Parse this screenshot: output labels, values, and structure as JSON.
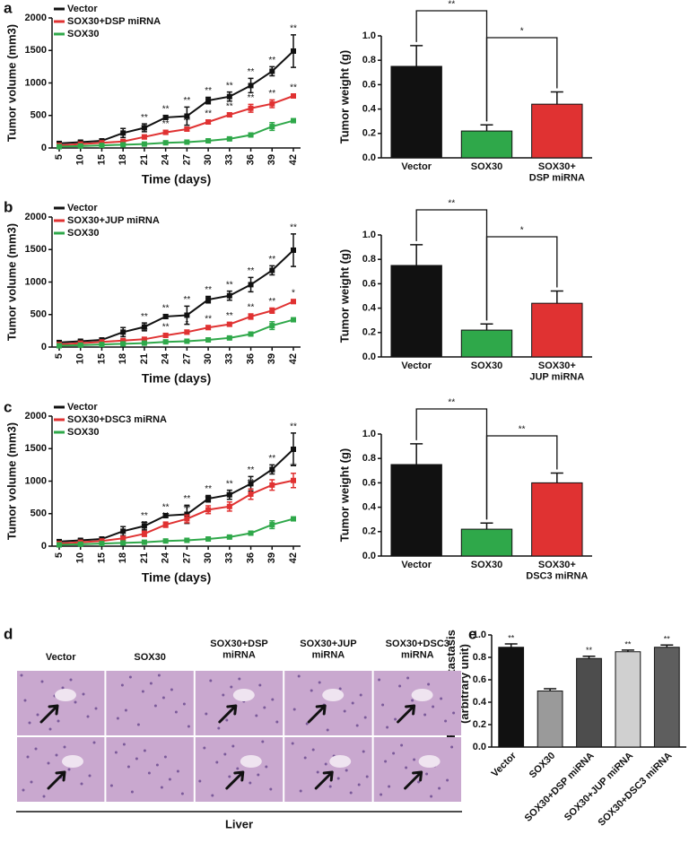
{
  "panel_labels": [
    "a",
    "b",
    "c",
    "d",
    "e"
  ],
  "chart_data": [
    {
      "type": "line",
      "xlabel": "Time (days)",
      "ylabel": "Tumor volume (mm3)",
      "categories": [
        "5",
        "10",
        "15",
        "18",
        "21",
        "24",
        "27",
        "30",
        "33",
        "36",
        "39",
        "42"
      ],
      "ylim": [
        0,
        2000
      ],
      "yticks": [
        0,
        500,
        1000,
        1500,
        2000
      ],
      "series": [
        {
          "name": "Vector",
          "color": "#111111",
          "values": [
            70,
            90,
            110,
            230,
            310,
            470,
            490,
            730,
            790,
            960,
            1180,
            1490
          ],
          "errors": [
            20,
            20,
            20,
            70,
            60,
            30,
            140,
            50,
            70,
            110,
            70,
            250
          ],
          "value_annotations": [
            null,
            null,
            null,
            null,
            "**",
            "**",
            "**",
            "**",
            "**",
            "**",
            "**",
            "**"
          ]
        },
        {
          "name": "SOX30+DSP miRNA",
          "color": "#e03232",
          "values": [
            40,
            60,
            80,
            100,
            170,
            240,
            290,
            400,
            510,
            610,
            680,
            800
          ],
          "errors": [
            10,
            10,
            10,
            20,
            30,
            30,
            30,
            30,
            30,
            60,
            60,
            30
          ],
          "value_annotations": [
            null,
            null,
            null,
            null,
            "**",
            "**",
            "**",
            "**",
            "**",
            "**",
            "**",
            "**"
          ]
        },
        {
          "name": "SOX30",
          "color": "#2fa84a",
          "values": [
            20,
            30,
            40,
            50,
            60,
            80,
            90,
            110,
            140,
            200,
            330,
            420
          ],
          "errors": [
            10,
            10,
            10,
            10,
            10,
            10,
            10,
            15,
            15,
            20,
            60,
            20
          ],
          "value_annotations": [
            null,
            null,
            null,
            null,
            null,
            null,
            null,
            null,
            null,
            null,
            null,
            null
          ]
        }
      ]
    },
    {
      "type": "bar",
      "ylabel": "Tumor weight (g)",
      "categories": [
        "Vector",
        "SOX30",
        "SOX30+\nDSP miRNA"
      ],
      "values": [
        0.75,
        0.22,
        0.44
      ],
      "errors": [
        0.17,
        0.05,
        0.1
      ],
      "colors": [
        "#111111",
        "#2fa84a",
        "#e03232"
      ],
      "ylim": [
        0,
        1.0
      ],
      "yticks": [
        {
          "value": 0,
          "label": "0.0"
        },
        {
          "value": 0.2,
          "label": "0.2"
        },
        {
          "value": 0.4,
          "label": "0.4"
        },
        {
          "value": 0.6,
          "label": "0.6"
        },
        {
          "value": 0.8,
          "label": "0.8"
        },
        {
          "value": 1.0,
          "label": "1.0"
        }
      ],
      "comparisons": [
        {
          "pair": [
            0,
            1
          ],
          "label": "**"
        },
        {
          "pair": [
            1,
            2
          ],
          "label": "*"
        }
      ]
    },
    {
      "type": "line",
      "xlabel": "Time (days)",
      "ylabel": "Tumor volume (mm3)",
      "categories": [
        "5",
        "10",
        "15",
        "18",
        "21",
        "24",
        "27",
        "30",
        "33",
        "36",
        "39",
        "42"
      ],
      "ylim": [
        0,
        2000
      ],
      "yticks": [
        0,
        500,
        1000,
        1500,
        2000
      ],
      "series": [
        {
          "name": "Vector",
          "color": "#111111",
          "values": [
            70,
            90,
            110,
            230,
            310,
            470,
            490,
            730,
            790,
            960,
            1180,
            1490
          ],
          "errors": [
            20,
            20,
            20,
            70,
            60,
            30,
            140,
            50,
            70,
            110,
            70,
            250
          ],
          "value_annotations": [
            null,
            null,
            null,
            null,
            "**",
            "**",
            "**",
            "**",
            "**",
            "**",
            "**",
            "**"
          ]
        },
        {
          "name": "SOX30+JUP miRNA",
          "color": "#e03232",
          "values": [
            40,
            60,
            80,
            100,
            120,
            180,
            230,
            300,
            350,
            470,
            560,
            700
          ],
          "errors": [
            10,
            10,
            10,
            20,
            20,
            30,
            30,
            30,
            30,
            40,
            40,
            30
          ],
          "value_annotations": [
            null,
            null,
            null,
            null,
            "**",
            "**",
            "*",
            "**",
            "**",
            "**",
            "**",
            "*"
          ]
        },
        {
          "name": "SOX30",
          "color": "#2fa84a",
          "values": [
            20,
            30,
            40,
            50,
            60,
            80,
            90,
            110,
            140,
            200,
            330,
            420
          ],
          "errors": [
            10,
            10,
            10,
            10,
            10,
            10,
            10,
            15,
            15,
            20,
            60,
            20
          ],
          "value_annotations": [
            null,
            null,
            null,
            null,
            null,
            null,
            null,
            null,
            null,
            null,
            null,
            null
          ]
        }
      ]
    },
    {
      "type": "bar",
      "ylabel": "Tumor weight (g)",
      "categories": [
        "Vector",
        "SOX30",
        "SOX30+\nJUP miRNA"
      ],
      "values": [
        0.75,
        0.22,
        0.44
      ],
      "errors": [
        0.17,
        0.05,
        0.1
      ],
      "colors": [
        "#111111",
        "#2fa84a",
        "#e03232"
      ],
      "ylim": [
        0,
        1.0
      ],
      "yticks": [
        {
          "value": 0,
          "label": "0.0"
        },
        {
          "value": 0.2,
          "label": "0.2"
        },
        {
          "value": 0.4,
          "label": "0.4"
        },
        {
          "value": 0.6,
          "label": "0.6"
        },
        {
          "value": 0.8,
          "label": "0.8"
        },
        {
          "value": 1.0,
          "label": "1.0"
        }
      ],
      "comparisons": [
        {
          "pair": [
            0,
            1
          ],
          "label": "**"
        },
        {
          "pair": [
            1,
            2
          ],
          "label": "*"
        }
      ]
    },
    {
      "type": "line",
      "xlabel": "Time (days)",
      "ylabel": "Tumor volume (mm3)",
      "categories": [
        "5",
        "10",
        "15",
        "18",
        "21",
        "24",
        "27",
        "30",
        "33",
        "36",
        "39",
        "42"
      ],
      "ylim": [
        0,
        2000
      ],
      "yticks": [
        0,
        500,
        1000,
        1500,
        2000
      ],
      "series": [
        {
          "name": "Vector",
          "color": "#111111",
          "values": [
            70,
            90,
            110,
            230,
            310,
            470,
            490,
            730,
            790,
            960,
            1180,
            1490
          ],
          "errors": [
            20,
            20,
            20,
            70,
            60,
            30,
            140,
            50,
            70,
            110,
            70,
            250
          ],
          "value_annotations": [
            null,
            null,
            null,
            null,
            "**",
            "**",
            "**",
            "**",
            "**",
            "**",
            "**",
            "**"
          ]
        },
        {
          "name": "SOX30+DSC3 miRNA",
          "color": "#e03232",
          "values": [
            40,
            60,
            80,
            120,
            190,
            330,
            420,
            560,
            610,
            800,
            940,
            1010
          ],
          "errors": [
            10,
            10,
            10,
            30,
            40,
            40,
            60,
            60,
            70,
            80,
            80,
            110
          ],
          "value_annotations": [
            null,
            null,
            null,
            null,
            "**",
            "**",
            "**",
            "**",
            "**",
            "**",
            "**",
            "**"
          ]
        },
        {
          "name": "SOX30",
          "color": "#2fa84a",
          "values": [
            20,
            30,
            40,
            50,
            60,
            80,
            90,
            110,
            140,
            200,
            330,
            420
          ],
          "errors": [
            10,
            10,
            10,
            10,
            10,
            10,
            10,
            15,
            15,
            20,
            60,
            20
          ],
          "value_annotations": [
            null,
            null,
            null,
            null,
            null,
            null,
            null,
            null,
            null,
            null,
            null,
            null
          ]
        }
      ]
    },
    {
      "type": "bar",
      "ylabel": "Tumor weight (g)",
      "categories": [
        "Vector",
        "SOX30",
        "SOX30+\nDSC3 miRNA"
      ],
      "values": [
        0.75,
        0.22,
        0.6
      ],
      "errors": [
        0.17,
        0.05,
        0.08
      ],
      "colors": [
        "#111111",
        "#2fa84a",
        "#e03232"
      ],
      "ylim": [
        0,
        1.0
      ],
      "yticks": [
        {
          "value": 0,
          "label": "0.0"
        },
        {
          "value": 0.2,
          "label": "0.2"
        },
        {
          "value": 0.4,
          "label": "0.4"
        },
        {
          "value": 0.6,
          "label": "0.6"
        },
        {
          "value": 0.8,
          "label": "0.8"
        },
        {
          "value": 1.0,
          "label": "1.0"
        }
      ],
      "comparisons": [
        {
          "pair": [
            0,
            1
          ],
          "label": "**"
        },
        {
          "pair": [
            1,
            2
          ],
          "label": "**"
        }
      ]
    },
    {
      "type": "bar",
      "ylabel": "Relative metastasis\n(arbitrary unit)",
      "categories": [
        "Vector",
        "SOX30",
        "SOX30+DSP miRNA",
        "SOX30+JUP miRNA",
        "SOX30+DSC3 miRNA"
      ],
      "values": [
        0.89,
        0.5,
        0.79,
        0.85,
        0.89
      ],
      "errors": [
        0.03,
        0.02,
        0.02,
        0.015,
        0.02
      ],
      "colors": [
        "#111111",
        "#9a9a9a",
        "#4d4d4d",
        "#d0d0d0",
        "#5e5e5e"
      ],
      "value_annotations": [
        "**",
        null,
        "**",
        "**",
        "**"
      ],
      "ylim": [
        0,
        1.0
      ],
      "yticks": [
        {
          "value": 0,
          "label": "0.0"
        },
        {
          "value": 0.2,
          "label": "0.2"
        },
        {
          "value": 0.4,
          "label": "0.4"
        },
        {
          "value": 0.6,
          "label": "0.6"
        },
        {
          "value": 0.8,
          "label": "0.8"
        },
        {
          "value": 1.0,
          "label": "1.0"
        }
      ]
    }
  ],
  "image_panel": {
    "columns": [
      "Vector",
      "SOX30",
      "SOX30+DSP\nmiRNA",
      "SOX30+JUP\nmiRNA",
      "SOX30+DSC3\nmiRNA"
    ],
    "footer": "Liver"
  }
}
